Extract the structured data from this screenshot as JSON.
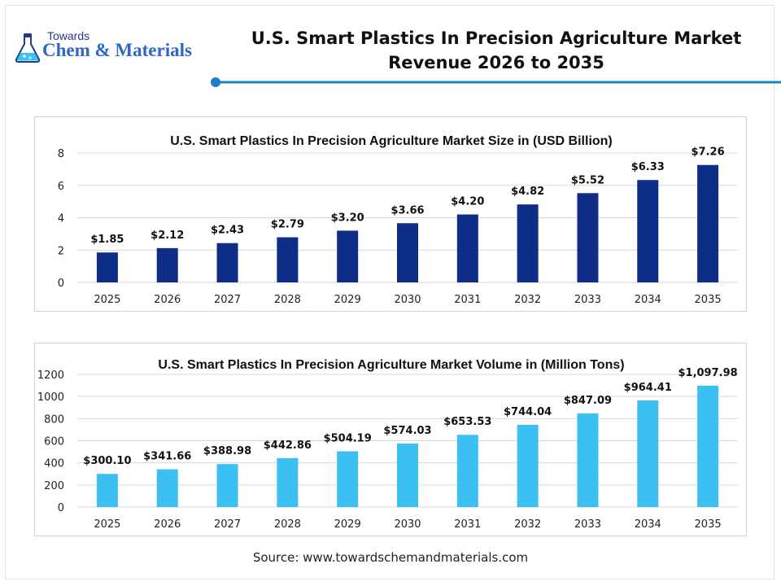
{
  "header": {
    "logo_top": "Towards",
    "logo_main": "Chem & Materials",
    "title_line1": "U.S. Smart Plastics In Precision Agriculture Market",
    "title_line2": "Revenue 2026 to 2035"
  },
  "colors": {
    "accent": "#1a7fc4",
    "bar_size": "#0d2d87",
    "bar_volume": "#3cc0f2"
  },
  "chart_data": [
    {
      "type": "bar",
      "title": "U.S. Smart Plastics In Precision Agriculture Market Size in (USD Billion)",
      "categories": [
        "2025",
        "2026",
        "2027",
        "2028",
        "2029",
        "2030",
        "2031",
        "2032",
        "2033",
        "2034",
        "2035"
      ],
      "values": [
        1.85,
        2.12,
        2.43,
        2.79,
        3.2,
        3.66,
        4.2,
        4.82,
        5.52,
        6.33,
        7.26
      ],
      "data_labels": [
        "$1.85",
        "$2.12",
        "$2.43",
        "$2.79",
        "$3.20",
        "$3.66",
        "$4.20",
        "$4.82",
        "$5.52",
        "$6.33",
        "$7.26"
      ],
      "yticks": [
        "0",
        "2",
        "4",
        "6",
        "8"
      ],
      "ylim": [
        0,
        8
      ],
      "grid": true,
      "color": "#0d2d87"
    },
    {
      "type": "bar",
      "title": "U.S. Smart Plastics In Precision Agriculture Market Volume in (Million Tons)",
      "categories": [
        "2025",
        "2026",
        "2027",
        "2028",
        "2029",
        "2030",
        "2031",
        "2032",
        "2033",
        "2034",
        "2035"
      ],
      "values": [
        300.1,
        341.66,
        388.98,
        442.86,
        504.19,
        574.03,
        653.53,
        744.04,
        847.09,
        964.41,
        1097.98
      ],
      "data_labels": [
        "$300.10",
        "$341.66",
        "$388.98",
        "$442.86",
        "$504.19",
        "$574.03",
        "$653.53",
        "$744.04",
        "$847.09",
        "$964.41",
        "$1,097.98"
      ],
      "yticks": [
        "0",
        "200",
        "400",
        "600",
        "800",
        "1000",
        "1200"
      ],
      "ylim": [
        0,
        1200
      ],
      "grid": true,
      "color": "#3cc0f2"
    }
  ],
  "footer": {
    "source": "Source: www.towardschemandmaterials.com"
  }
}
